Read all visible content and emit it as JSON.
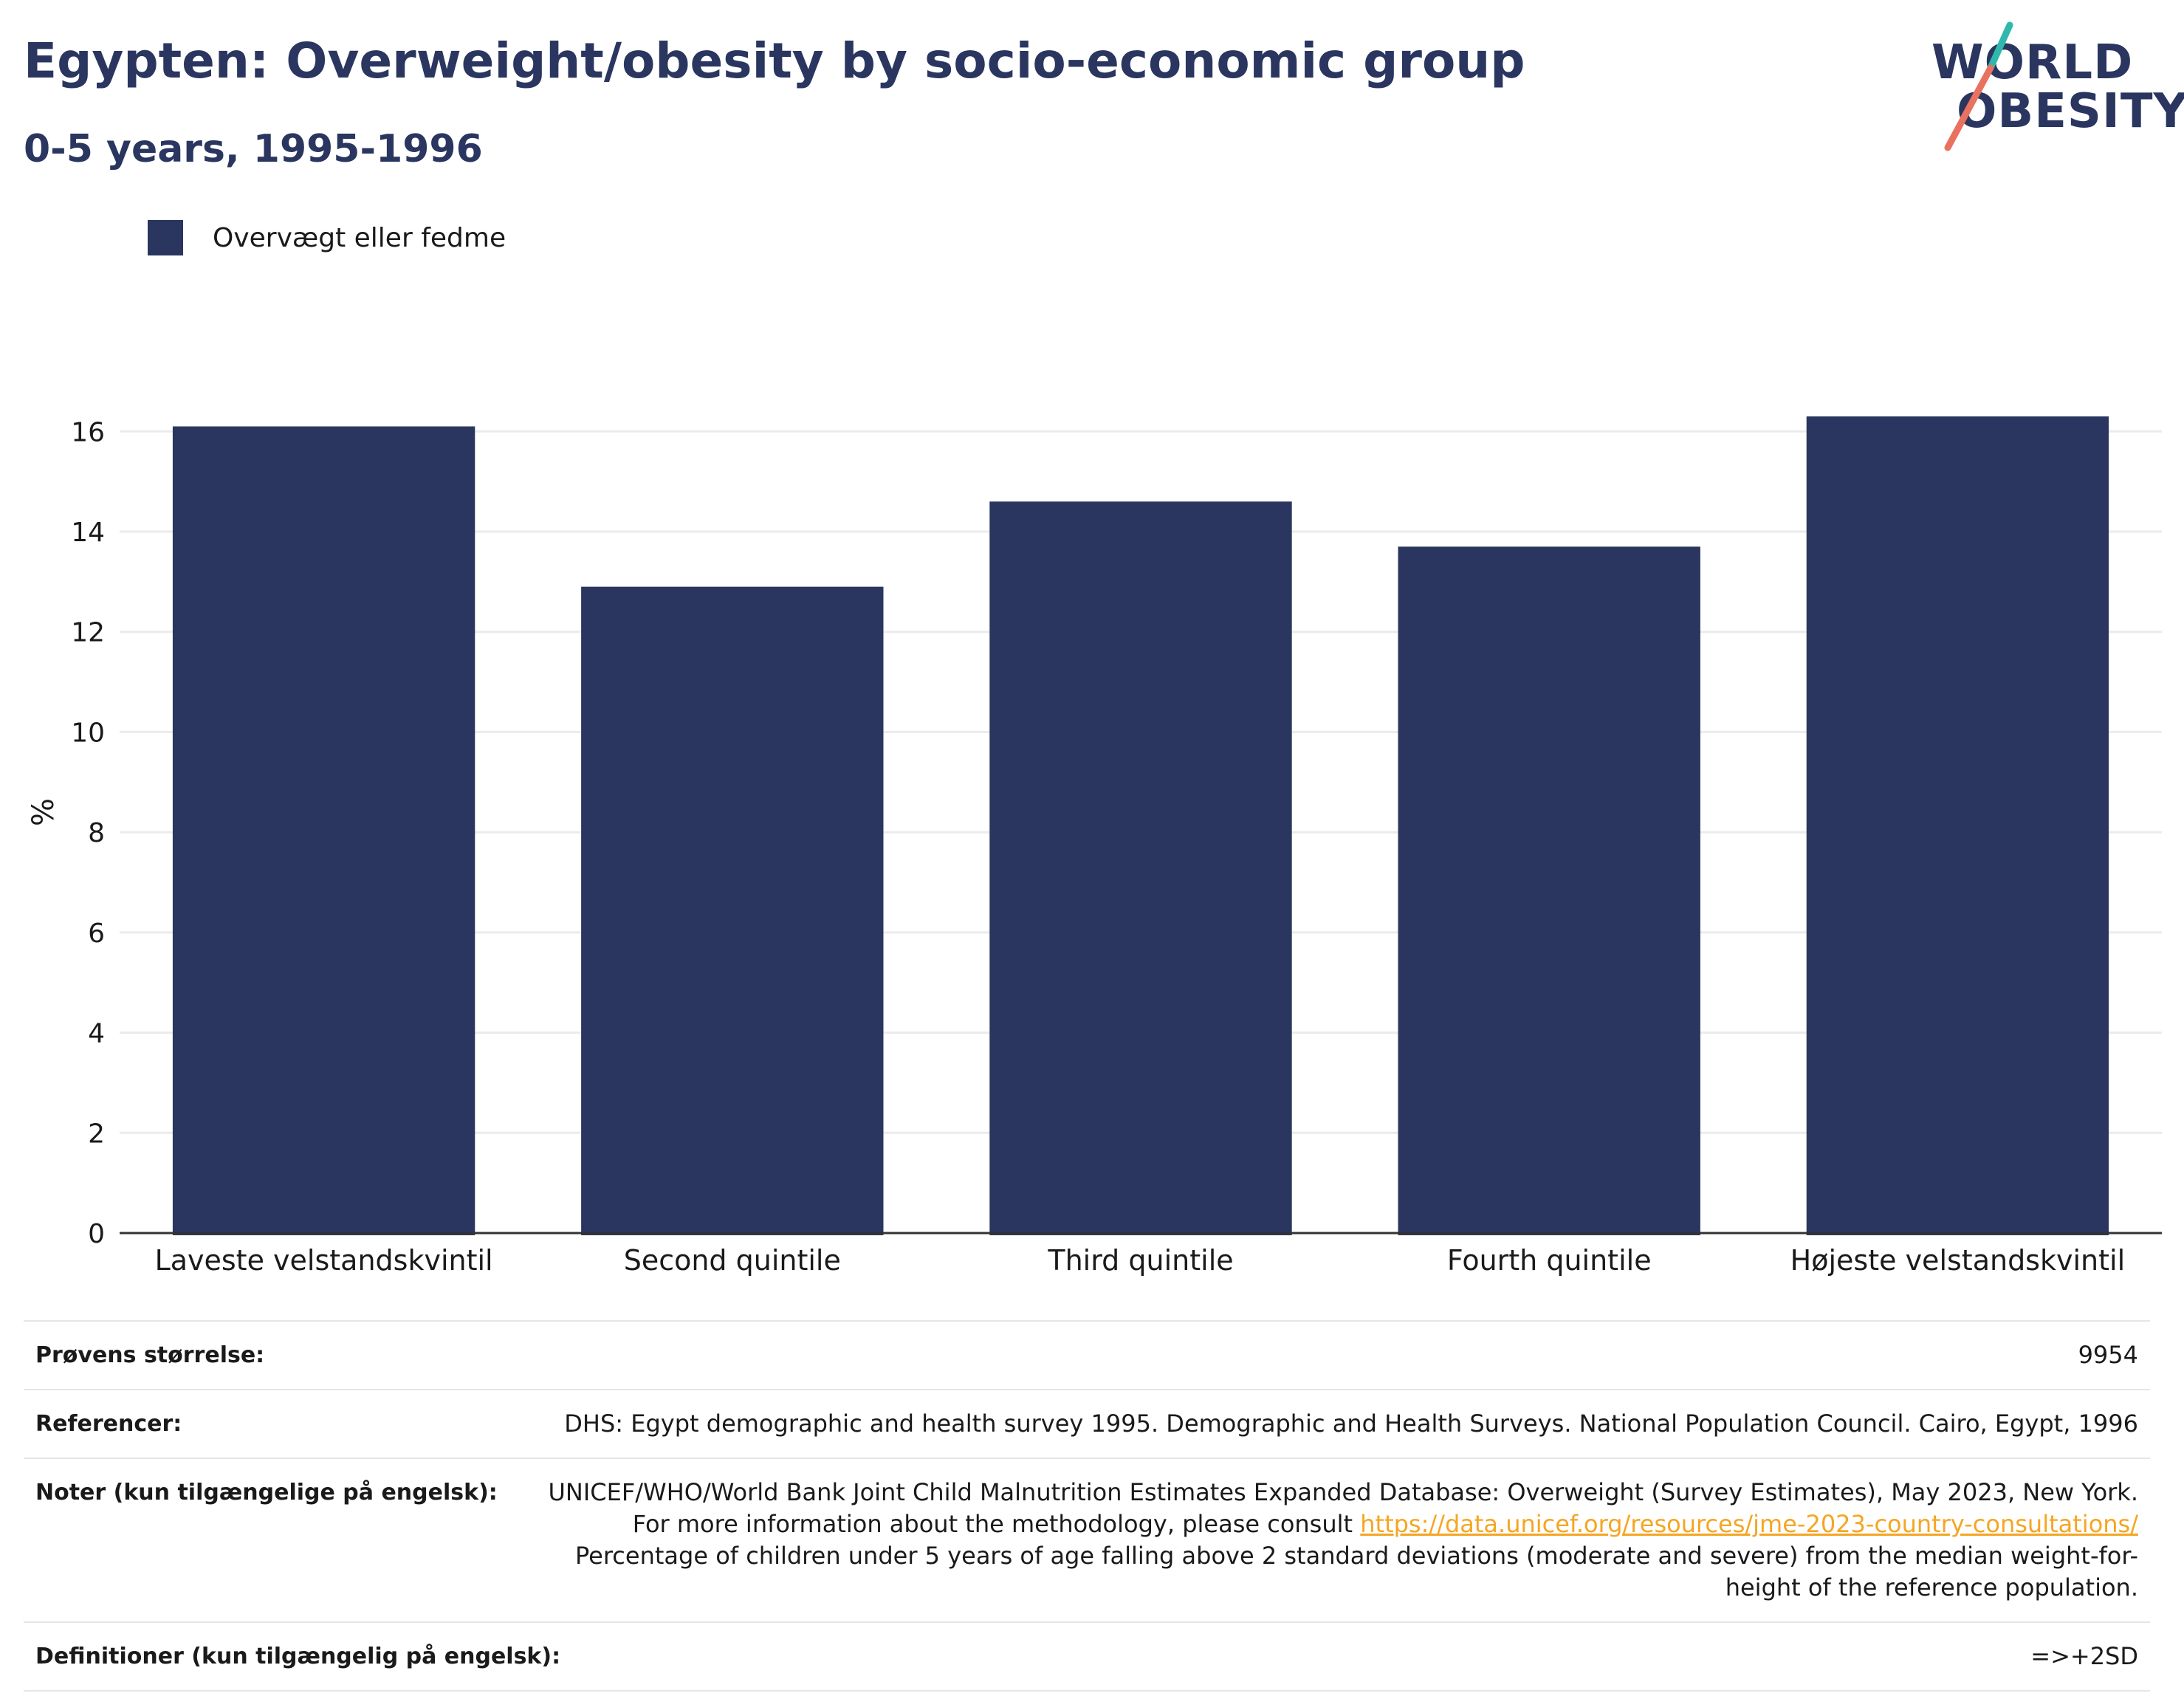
{
  "header": {
    "title": "Egypten: Overweight/obesity by socio-economic group",
    "subtitle": "0-5 years, 1995-1996"
  },
  "logo": {
    "line1": "WORLD",
    "line2": "OBESITY"
  },
  "colors": {
    "bar": "#2a365f",
    "accent_teal": "#2fb8ac",
    "accent_coral": "#e8715f",
    "link": "#f5a623"
  },
  "legend": {
    "label": "Overvægt eller fedme"
  },
  "chart_data": {
    "type": "bar",
    "categories": [
      "Laveste velstandskvintil",
      "Second quintile",
      "Third quintile",
      "Fourth quintile",
      "Højeste velstandskvintil"
    ],
    "series": [
      {
        "name": "Overvægt eller fedme",
        "values": [
          16.1,
          12.9,
          14.6,
          13.7,
          16.3
        ]
      }
    ],
    "ylabel": "%",
    "ylim": [
      0,
      16.8
    ],
    "yticks": [
      0,
      2,
      4,
      6,
      8,
      10,
      12,
      14,
      16
    ],
    "grid": true,
    "legend_position": "top-left"
  },
  "meta": {
    "sample_size_label": "Prøvens størrelse:",
    "sample_size_value": "9954",
    "references_label": "Referencer:",
    "references_value": "DHS: Egypt demographic and health survey 1995. Demographic and Health Surveys. National Population Council. Cairo, Egypt, 1996",
    "notes_label": "Noter (kun tilgængelige på engelsk):",
    "notes_text_1": "UNICEF/WHO/World Bank Joint Child Malnutrition Estimates Expanded Database: Overweight (Survey Estimates), May 2023, New York. For more information about the methodology, please consult ",
    "notes_link": "https://data.unicef.org/resources/jme-2023-country-consultations/",
    "notes_text_2": "Percentage of children under 5 years of age falling above 2 standard deviations (moderate and severe) from the median weight-for-height of the reference population.",
    "definitions_label": "Definitioner (kun tilgængelig på engelsk):",
    "definitions_value": "=>+2SD"
  }
}
